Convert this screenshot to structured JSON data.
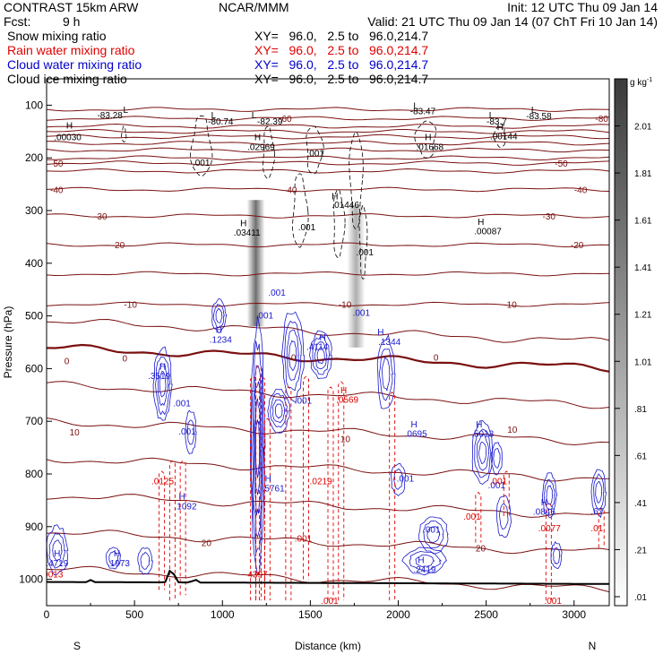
{
  "header": {
    "model": "CONTRAST 15km ARW",
    "center": "NCAR/MMM",
    "init": "Init: 12 UTC Thu 09 Jan 14",
    "fcst_label": "Fcst:",
    "fcst_value": "9 h",
    "valid": "Valid: 21 UTC Thu 09 Jan 14 (07 ChT Fri 10 Jan 14)"
  },
  "fields": [
    {
      "name": "Snow mixing ratio",
      "xy": "XY=   96.0,   2.5 to   96.0,214.7",
      "color": "#000000"
    },
    {
      "name": "Rain water mixing ratio",
      "xy": "XY=   96.0,   2.5 to   96.0,214.7",
      "color": "#e00000"
    },
    {
      "name": "Cloud water mixing ratio",
      "xy": "XY=   96.0,   2.5 to   96.0,214.7",
      "color": "#0000cc"
    },
    {
      "name": "Cloud ice mixing ratio",
      "xy": "XY=   96.0,   2.5 to   96.0,214.7",
      "color": "#000000"
    }
  ],
  "chart_data": {
    "type": "cross-section",
    "xlabel": "Distance (km)",
    "ylabel": "Pressure (hPa)",
    "xlim": [
      0,
      3200
    ],
    "ylim": [
      1050,
      50
    ],
    "xticks": [
      0,
      500,
      1000,
      1500,
      2000,
      2500,
      3000
    ],
    "yticks": [
      100,
      200,
      300,
      400,
      500,
      600,
      700,
      800,
      900,
      1000
    ],
    "x_end_labels": {
      "left": "S",
      "right": "N"
    },
    "colorbar": {
      "unit": "g kg",
      "unit_exp": "-1",
      "ticks": [
        "2.01",
        "1.81",
        "1.61",
        "1.41",
        "1.21",
        "1.01",
        ".81",
        ".61",
        ".41",
        ".21",
        ".01"
      ],
      "min": 0.01,
      "max": 2.21
    },
    "temperature_labels": [
      {
        "x": 1300,
        "p": 125,
        "t": "-60"
      },
      {
        "x": 3100,
        "p": 125,
        "t": "-80"
      },
      {
        "x": 0,
        "p": 210,
        "t": "-50"
      },
      {
        "x": 2870,
        "p": 210,
        "t": "-50"
      },
      {
        "x": 0,
        "p": 260,
        "t": "-40"
      },
      {
        "x": 1330,
        "p": 260,
        "t": "-40"
      },
      {
        "x": 2980,
        "p": 260,
        "t": "-40"
      },
      {
        "x": 250,
        "p": 310,
        "t": "-30"
      },
      {
        "x": 2800,
        "p": 310,
        "t": "-30"
      },
      {
        "x": 350,
        "p": 365,
        "t": "-20"
      },
      {
        "x": 2960,
        "p": 365,
        "t": "-20"
      },
      {
        "x": 420,
        "p": 478,
        "t": "-10"
      },
      {
        "x": 1640,
        "p": 478,
        "t": "-10"
      },
      {
        "x": 2580,
        "p": 478,
        "t": "-10"
      },
      {
        "x": 80,
        "p": 585,
        "t": "0"
      },
      {
        "x": 410,
        "p": 580,
        "t": "0"
      },
      {
        "x": 1370,
        "p": 578,
        "t": "0"
      },
      {
        "x": 2180,
        "p": 578,
        "t": "0"
      },
      {
        "x": 110,
        "p": 720,
        "t": "10"
      },
      {
        "x": 1650,
        "p": 733,
        "t": "10"
      },
      {
        "x": 2600,
        "p": 715,
        "t": "10"
      },
      {
        "x": 860,
        "p": 930,
        "t": "20"
      },
      {
        "x": 2420,
        "p": 940,
        "t": "20"
      }
    ],
    "snow_ice_labels": [
      {
        "x": 450,
        "p": 108,
        "t": "L"
      },
      {
        "x": 360,
        "p": 118,
        "t": "-83.28"
      },
      {
        "x": 950,
        "p": 118,
        "t": "L"
      },
      {
        "x": 990,
        "p": 130,
        "t": "-80.74"
      },
      {
        "x": 1180,
        "p": 118,
        "t": "L"
      },
      {
        "x": 1270,
        "p": 130,
        "t": "-82.39"
      },
      {
        "x": 2100,
        "p": 100,
        "t": "L"
      },
      {
        "x": 2140,
        "p": 110,
        "t": "-83.47"
      },
      {
        "x": 2530,
        "p": 118,
        "t": "L"
      },
      {
        "x": 2560,
        "p": 130,
        "t": "-83.7"
      },
      {
        "x": 2770,
        "p": 108,
        "t": "L"
      },
      {
        "x": 2800,
        "p": 120,
        "t": "-83.58"
      },
      {
        "x": 130,
        "p": 138,
        "t": "H"
      },
      {
        "x": 120,
        "p": 160,
        "t": ".00030"
      },
      {
        "x": 1200,
        "p": 160,
        "t": "H"
      },
      {
        "x": 1220,
        "p": 178,
        "t": ".02969"
      },
      {
        "x": 1530,
        "p": 190,
        "t": ".001"
      },
      {
        "x": 2170,
        "p": 160,
        "t": "H"
      },
      {
        "x": 2180,
        "p": 178,
        "t": ".01668"
      },
      {
        "x": 2580,
        "p": 140,
        "t": "H"
      },
      {
        "x": 2600,
        "p": 158,
        "t": ".00144"
      },
      {
        "x": 880,
        "p": 208,
        "t": ".001"
      },
      {
        "x": 1640,
        "p": 272,
        "t": "H"
      },
      {
        "x": 1700,
        "p": 288,
        "t": ".01446"
      },
      {
        "x": 1120,
        "p": 323,
        "t": "H"
      },
      {
        "x": 1140,
        "p": 341,
        "t": ".03411"
      },
      {
        "x": 1480,
        "p": 331,
        "t": ".001"
      },
      {
        "x": 2470,
        "p": 320,
        "t": "H"
      },
      {
        "x": 2510,
        "p": 338,
        "t": ".00087"
      },
      {
        "x": 1810,
        "p": 378,
        "t": ".001"
      }
    ],
    "cloud_water_labels": [
      {
        "x": 1310,
        "p": 455,
        "t": ".001"
      },
      {
        "x": 1240,
        "p": 498,
        "t": ".001"
      },
      {
        "x": 1790,
        "p": 493,
        "t": ".001"
      },
      {
        "x": 980,
        "p": 525,
        "t": "H"
      },
      {
        "x": 990,
        "p": 544,
        "t": ".1234"
      },
      {
        "x": 1570,
        "p": 540,
        "t": "H"
      },
      {
        "x": 1540,
        "p": 558,
        "t": ".4114"
      },
      {
        "x": 1900,
        "p": 530,
        "t": "H"
      },
      {
        "x": 1950,
        "p": 548,
        "t": ".1344"
      },
      {
        "x": 660,
        "p": 595,
        "t": "H"
      },
      {
        "x": 640,
        "p": 613,
        "t": ".3519"
      },
      {
        "x": 770,
        "p": 665,
        "t": ".001"
      },
      {
        "x": 1460,
        "p": 660,
        "t": ".001"
      },
      {
        "x": 800,
        "p": 718,
        "t": ".001"
      },
      {
        "x": 2090,
        "p": 705,
        "t": "H"
      },
      {
        "x": 2100,
        "p": 723,
        "t": ".0695"
      },
      {
        "x": 2460,
        "p": 705,
        "t": "H"
      },
      {
        "x": 2480,
        "p": 723,
        "t": ".5013"
      },
      {
        "x": 1260,
        "p": 808,
        "t": "H"
      },
      {
        "x": 1290,
        "p": 826,
        "t": ".5761"
      },
      {
        "x": 2040,
        "p": 808,
        "t": ".001"
      },
      {
        "x": 2560,
        "p": 820,
        "t": ".001"
      },
      {
        "x": 770,
        "p": 842,
        "t": "H"
      },
      {
        "x": 790,
        "p": 860,
        "t": ".1092"
      },
      {
        "x": 2830,
        "p": 853,
        "t": "H"
      },
      {
        "x": 2830,
        "p": 871,
        "t": ".0846"
      },
      {
        "x": 3130,
        "p": 870,
        "t": ".67"
      },
      {
        "x": 2190,
        "p": 905,
        "t": ".001"
      },
      {
        "x": 60,
        "p": 950,
        "t": "H"
      },
      {
        "x": 60,
        "p": 968,
        "t": ".4719"
      },
      {
        "x": 400,
        "p": 950,
        "t": "H"
      },
      {
        "x": 410,
        "p": 968,
        "t": ".1973"
      },
      {
        "x": 2130,
        "p": 962,
        "t": "H"
      },
      {
        "x": 2150,
        "p": 980,
        "t": ".2419"
      }
    ],
    "rain_water_labels": [
      {
        "x": 1690,
        "p": 640,
        "t": "H"
      },
      {
        "x": 1710,
        "p": 658,
        "t": ".0569"
      },
      {
        "x": 660,
        "p": 813,
        "t": ".0125"
      },
      {
        "x": 1560,
        "p": 813,
        "t": ".0219"
      },
      {
        "x": 2570,
        "p": 813,
        "t": ".001"
      },
      {
        "x": 2420,
        "p": 880,
        "t": ".001"
      },
      {
        "x": 2860,
        "p": 902,
        "t": ".0077"
      },
      {
        "x": 3130,
        "p": 902,
        "t": ".01"
      },
      {
        "x": 1460,
        "p": 922,
        "t": ".001"
      },
      {
        "x": 30,
        "p": 990,
        "t": ".0013"
      },
      {
        "x": 1200,
        "p": 990,
        "t": "4397"
      },
      {
        "x": 1610,
        "p": 1040,
        "t": ".001"
      },
      {
        "x": 2880,
        "p": 1040,
        "t": ".001"
      },
      {
        "x": 790,
        "p": 1075,
        "t": ".001"
      },
      {
        "x": 1380,
        "p": 1075,
        "t": ".001"
      }
    ],
    "snow_shading_columns": [
      {
        "x": 1190,
        "p_top": 280,
        "p_bottom": 520,
        "max": 1.6
      },
      {
        "x": 1760,
        "p_top": 290,
        "p_bottom": 560,
        "max": 0.9
      }
    ]
  }
}
